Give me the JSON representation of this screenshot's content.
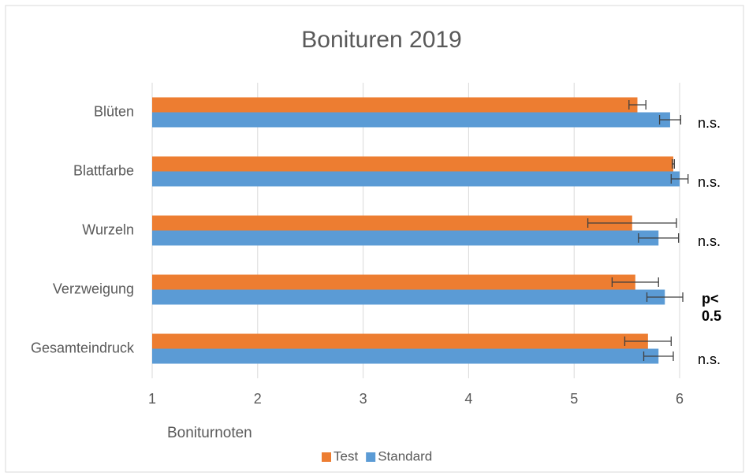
{
  "chart_data": {
    "type": "barh",
    "title": "Bonituren 2019",
    "xlabel": "Boniturnoten",
    "categories": [
      "Blüten",
      "Blattfarbe",
      "Wurzeln",
      "Verzweigung",
      "Gesamteindruck"
    ],
    "series": [
      {
        "name": "Test",
        "color": "#ED7D31",
        "values": [
          5.6,
          5.94,
          5.55,
          5.58,
          5.7
        ],
        "errors": [
          0.08,
          0.01,
          0.42,
          0.22,
          0.22
        ]
      },
      {
        "name": "Standard",
        "color": "#5B9BD5",
        "values": [
          5.91,
          6.0,
          5.8,
          5.86,
          5.8
        ],
        "errors": [
          0.1,
          0.08,
          0.19,
          0.17,
          0.14
        ]
      }
    ],
    "annotations": [
      {
        "text": "n.s."
      },
      {
        "text": "n.s."
      },
      {
        "text": "n.s."
      },
      {
        "text": "p<0.5",
        "bold": true
      },
      {
        "text": "n.s."
      }
    ],
    "xlim": [
      1,
      6
    ],
    "xticks": [
      1,
      2,
      3,
      4,
      5,
      6
    ],
    "grid": true,
    "legend": "bottom"
  }
}
